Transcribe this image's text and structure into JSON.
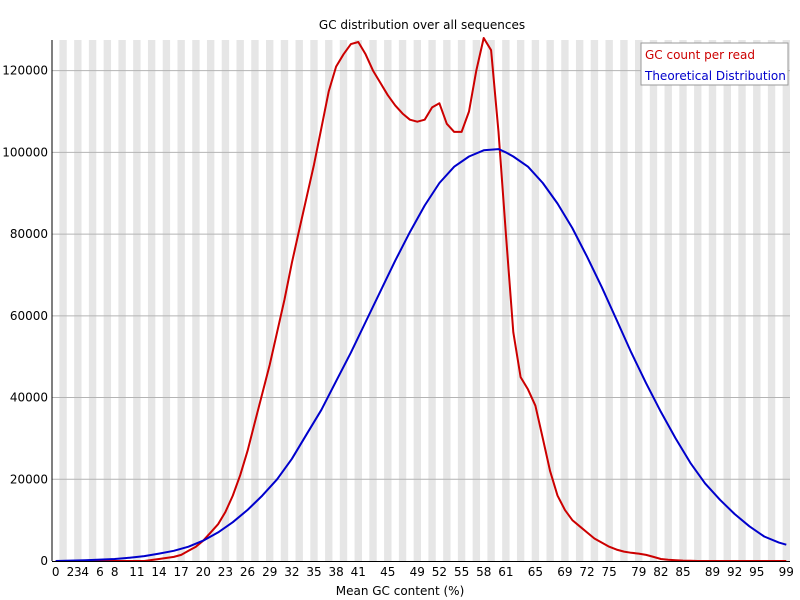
{
  "chart_data": {
    "type": "line",
    "title": "GC distribution over all sequences",
    "xlabel": "Mean GC content (%)",
    "ylabel": "",
    "xlim": [
      0,
      100
    ],
    "ylim": [
      0,
      127500
    ],
    "x_tick_labels": [
      "0",
      "2",
      "3",
      "4",
      "6",
      "8",
      "11",
      "14",
      "17",
      "20",
      "23",
      "26",
      "29",
      "32",
      "35",
      "38",
      "41",
      "45",
      "49",
      "52",
      "55",
      "58",
      "61",
      "65",
      "69",
      "72",
      "75",
      "79",
      "82",
      "85",
      "89",
      "92",
      "95",
      "99"
    ],
    "y_ticks": [
      0,
      20000,
      40000,
      60000,
      80000,
      100000,
      120000
    ],
    "y_tick_labels": [
      "0",
      "20000",
      "40000",
      "60000",
      "80000",
      "100000",
      "120000"
    ],
    "grid": true,
    "background_bands": "alternating grey/white vertical bands per GC percent",
    "legend": {
      "placement": "top-right",
      "entries": [
        {
          "label": "GC count per read",
          "color": "#cc0000"
        },
        {
          "label": "Theoretical Distribution",
          "color": "#0000cc"
        }
      ]
    },
    "series": [
      {
        "name": "GC count per read",
        "color": "#cc0000",
        "x": [
          0,
          2,
          4,
          6,
          8,
          10,
          12,
          14,
          16,
          17,
          18,
          19,
          20,
          21,
          22,
          23,
          24,
          25,
          26,
          27,
          28,
          29,
          30,
          31,
          32,
          33,
          34,
          35,
          36,
          37,
          38,
          39,
          40,
          41,
          42,
          43,
          44,
          45,
          46,
          47,
          48,
          49,
          50,
          51,
          52,
          53,
          54,
          55,
          56,
          57,
          58,
          59,
          60,
          61,
          62,
          63,
          64,
          65,
          66,
          67,
          68,
          69,
          70,
          71,
          72,
          73,
          74,
          75,
          76,
          77,
          78,
          79,
          80,
          81,
          82,
          83,
          84,
          85,
          86,
          87,
          88,
          89,
          90,
          92,
          94,
          96,
          98,
          100
        ],
        "values": [
          0,
          0,
          0,
          0,
          0,
          0,
          0,
          500,
          1000,
          1500,
          2500,
          3500,
          5000,
          7000,
          9000,
          12000,
          16000,
          21000,
          27000,
          34000,
          41000,
          48000,
          56000,
          64000,
          73000,
          81000,
          89000,
          97000,
          106000,
          115000,
          121000,
          124000,
          126500,
          127000,
          124000,
          120000,
          117000,
          114000,
          111500,
          109500,
          108000,
          107500,
          108000,
          111000,
          112000,
          107000,
          105000,
          105000,
          110000,
          120000,
          128000,
          125000,
          105000,
          80000,
          56000,
          45000,
          42000,
          38000,
          30000,
          22000,
          16000,
          12500,
          10000,
          8500,
          7000,
          5500,
          4500,
          3500,
          2800,
          2300,
          2000,
          1800,
          1500,
          1000,
          500,
          300,
          200,
          100,
          50,
          0,
          0,
          0,
          0,
          0,
          0,
          0,
          0,
          0
        ],
        "x_mapping": "values aligned to GC percent; last point at 99"
      },
      {
        "name": "Theoretical Distribution",
        "color": "#0000cc",
        "x": [
          0,
          4,
          8,
          10,
          12,
          14,
          16,
          18,
          20,
          22,
          24,
          26,
          28,
          30,
          32,
          34,
          36,
          38,
          40,
          42,
          44,
          46,
          48,
          50,
          52,
          54,
          56,
          58,
          60,
          61,
          62,
          64,
          66,
          68,
          70,
          72,
          74,
          76,
          78,
          80,
          82,
          84,
          86,
          88,
          90,
          92,
          94,
          96,
          98,
          100
        ],
        "values": [
          0,
          200,
          500,
          800,
          1200,
          1800,
          2500,
          3500,
          5000,
          7000,
          9500,
          12500,
          16000,
          20000,
          25000,
          31000,
          37000,
          44000,
          51000,
          58500,
          66000,
          73500,
          80500,
          87000,
          92500,
          96500,
          99000,
          100500,
          100800,
          100000,
          99000,
          96500,
          92500,
          87500,
          81500,
          74500,
          67000,
          59000,
          51000,
          43500,
          36500,
          30000,
          24000,
          19000,
          15000,
          11500,
          8500,
          6000,
          4500,
          4000
        ],
        "x_mapping": "values aligned to GC percent; last point at 99"
      }
    ]
  }
}
